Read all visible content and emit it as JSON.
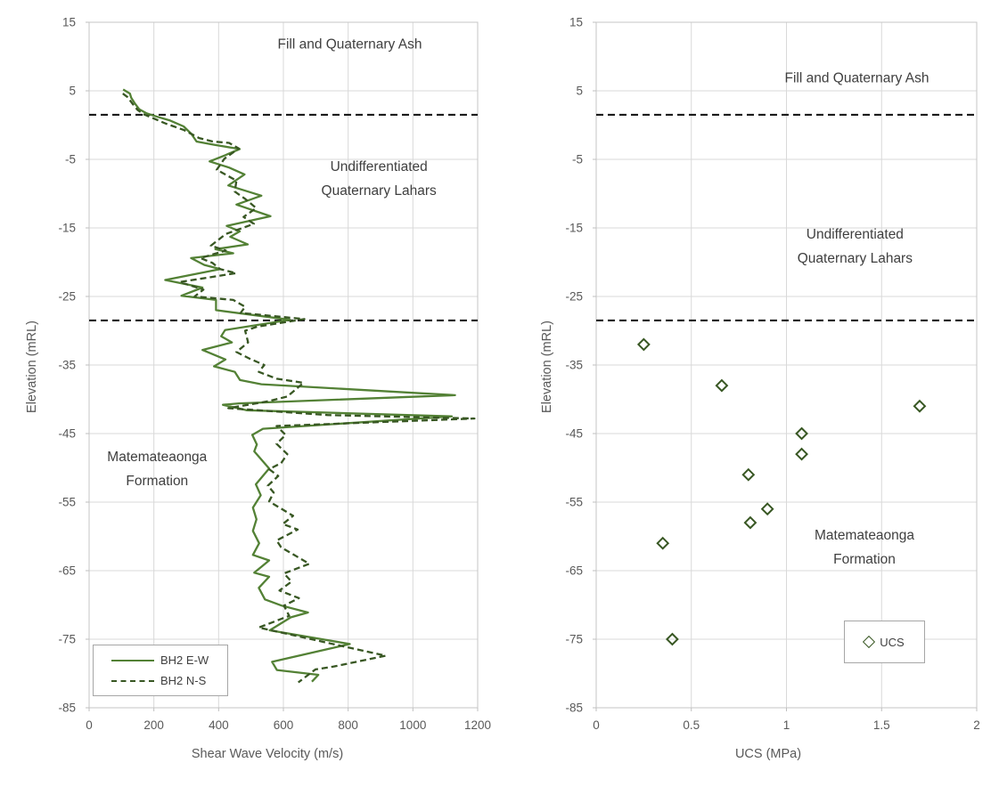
{
  "figure": {
    "background": "#ffffff",
    "colors": {
      "grid": "#d9d9d9",
      "plot_border": "#c6c6c6",
      "tick_mark": "#bfbfbf",
      "tick_text": "#595959",
      "annotation_text": "#3f3f3f",
      "boundary_line": "#1a1a1a",
      "legend_border": "#a6a6a6",
      "solid_series": "#538135",
      "dashed_series": "#385723",
      "marker": "#385723"
    }
  },
  "chart_data": [
    {
      "type": "line",
      "title": "",
      "xlabel": "Shear Wave Velocity (m/s)",
      "ylabel": "Elevation (mRL)",
      "xlim": [
        0,
        1200
      ],
      "ylim": [
        -85,
        15
      ],
      "x_ticks": [
        0,
        200,
        400,
        600,
        800,
        1000,
        1200
      ],
      "y_ticks": [
        15,
        5,
        -5,
        -15,
        -25,
        -35,
        -45,
        -55,
        -65,
        -75,
        -85
      ],
      "grid": true,
      "legend_position": "bottom-left",
      "boundaries": [
        1.5,
        -28.5
      ],
      "annotations": [
        {
          "lines": [
            "Fill and Quaternary Ash"
          ],
          "x": 805,
          "elev": 11.7
        },
        {
          "lines": [
            "Undifferentiated",
            "Quaternary Lahars"
          ],
          "x": 895,
          "elev": -7.8
        },
        {
          "lines": [
            "Matemateaonga",
            "Formation"
          ],
          "x": 210,
          "elev": -50.2
        }
      ],
      "series": [
        {
          "name": "BH2 E-W",
          "style": "solid",
          "color": "#538135",
          "points": [
            [
              105,
              5.2
            ],
            [
              126,
              4.6
            ],
            [
              130,
              4.0
            ],
            [
              142,
              3.1
            ],
            [
              155,
              2.3
            ],
            [
              178,
              1.7
            ],
            [
              212,
              1.2
            ],
            [
              248,
              0.7
            ],
            [
              292,
              -0.2
            ],
            [
              316,
              -1.3
            ],
            [
              332,
              -2.4
            ],
            [
              388,
              -2.9
            ],
            [
              465,
              -3.5
            ],
            [
              420,
              -4.4
            ],
            [
              372,
              -5.3
            ],
            [
              432,
              -6.2
            ],
            [
              480,
              -7.2
            ],
            [
              430,
              -8.8
            ],
            [
              532,
              -10.3
            ],
            [
              455,
              -11.6
            ],
            [
              560,
              -13.3
            ],
            [
              425,
              -14.7
            ],
            [
              465,
              -15.5
            ],
            [
              436,
              -16.3
            ],
            [
              490,
              -17.4
            ],
            [
              390,
              -18.1
            ],
            [
              445,
              -18.7
            ],
            [
              315,
              -19.4
            ],
            [
              356,
              -20.4
            ],
            [
              405,
              -21.0
            ],
            [
              235,
              -22.6
            ],
            [
              350,
              -23.7
            ],
            [
              285,
              -24.9
            ],
            [
              392,
              -25.5
            ],
            [
              392,
              -27.0
            ],
            [
              620,
              -28.4
            ],
            [
              420,
              -29.9
            ],
            [
              408,
              -30.8
            ],
            [
              441,
              -31.7
            ],
            [
              350,
              -32.8
            ],
            [
              421,
              -34.2
            ],
            [
              386,
              -35.2
            ],
            [
              450,
              -36.0
            ],
            [
              466,
              -37.2
            ],
            [
              532,
              -37.8
            ],
            [
              1130,
              -39.4
            ],
            [
              463,
              -40.6
            ],
            [
              413,
              -40.8
            ],
            [
              486,
              -41.6
            ],
            [
              1120,
              -42.5
            ],
            [
              537,
              -44.3
            ],
            [
              504,
              -45.2
            ],
            [
              518,
              -46.6
            ],
            [
              510,
              -47.6
            ],
            [
              556,
              -50.1
            ],
            [
              515,
              -52.4
            ],
            [
              530,
              -54.0
            ],
            [
              506,
              -55.8
            ],
            [
              517,
              -57.5
            ],
            [
              506,
              -59.2
            ],
            [
              525,
              -61.0
            ],
            [
              506,
              -62.7
            ],
            [
              556,
              -63.5
            ],
            [
              510,
              -65.3
            ],
            [
              556,
              -65.9
            ],
            [
              524,
              -67.5
            ],
            [
              543,
              -69.2
            ],
            [
              595,
              -70.1
            ],
            [
              676,
              -71.1
            ],
            [
              623,
              -71.8
            ],
            [
              558,
              -73.7
            ],
            [
              805,
              -75.7
            ],
            [
              565,
              -78.3
            ],
            [
              580,
              -79.5
            ],
            [
              708,
              -80.2
            ],
            [
              688,
              -81.2
            ]
          ]
        },
        {
          "name": "BH2 N-S",
          "style": "dashed",
          "color": "#385723",
          "points": [
            [
              104,
              4.6
            ],
            [
              118,
              4.1
            ],
            [
              136,
              3.0
            ],
            [
              150,
              2.2
            ],
            [
              168,
              1.6
            ],
            [
              198,
              1.0
            ],
            [
              238,
              0.2
            ],
            [
              292,
              -0.7
            ],
            [
              340,
              -1.9
            ],
            [
              382,
              -2.4
            ],
            [
              432,
              -2.6
            ],
            [
              462,
              -3.4
            ],
            [
              418,
              -4.9
            ],
            [
              394,
              -6.5
            ],
            [
              455,
              -8.1
            ],
            [
              450,
              -9.7
            ],
            [
              483,
              -10.8
            ],
            [
              516,
              -12.1
            ],
            [
              477,
              -13.4
            ],
            [
              509,
              -14.4
            ],
            [
              422,
              -15.9
            ],
            [
              376,
              -17.6
            ],
            [
              422,
              -18.3
            ],
            [
              344,
              -19.4
            ],
            [
              381,
              -20.1
            ],
            [
              404,
              -21.0
            ],
            [
              454,
              -21.6
            ],
            [
              280,
              -22.9
            ],
            [
              353,
              -24.0
            ],
            [
              326,
              -25.0
            ],
            [
              445,
              -25.5
            ],
            [
              482,
              -26.5
            ],
            [
              468,
              -27.4
            ],
            [
              665,
              -28.3
            ],
            [
              519,
              -29.4
            ],
            [
              482,
              -30.0
            ],
            [
              491,
              -31.7
            ],
            [
              455,
              -33.1
            ],
            [
              497,
              -34.1
            ],
            [
              541,
              -35.0
            ],
            [
              524,
              -36.0
            ],
            [
              579,
              -37.0
            ],
            [
              662,
              -37.6
            ],
            [
              612,
              -39.6
            ],
            [
              552,
              -40.3
            ],
            [
              430,
              -41.3
            ],
            [
              736,
              -42.3
            ],
            [
              1190,
              -42.8
            ],
            [
              579,
              -43.9
            ],
            [
              607,
              -45.2
            ],
            [
              579,
              -46.5
            ],
            [
              612,
              -48.0
            ],
            [
              593,
              -49.3
            ],
            [
              556,
              -50.2
            ],
            [
              584,
              -51.2
            ],
            [
              552,
              -52.6
            ],
            [
              570,
              -53.6
            ],
            [
              556,
              -54.9
            ],
            [
              588,
              -55.8
            ],
            [
              630,
              -57.0
            ],
            [
              598,
              -58.2
            ],
            [
              644,
              -59.0
            ],
            [
              579,
              -60.6
            ],
            [
              593,
              -61.6
            ],
            [
              680,
              -64.0
            ],
            [
              602,
              -65.4
            ],
            [
              625,
              -66.6
            ],
            [
              588,
              -67.9
            ],
            [
              648,
              -69.0
            ],
            [
              602,
              -70.1
            ],
            [
              618,
              -71.6
            ],
            [
              524,
              -73.3
            ],
            [
              810,
              -76.3
            ],
            [
              916,
              -77.4
            ],
            [
              754,
              -79.0
            ],
            [
              699,
              -79.4
            ],
            [
              646,
              -81.3
            ]
          ]
        }
      ]
    },
    {
      "type": "scatter",
      "title": "",
      "xlabel": "UCS (MPa)",
      "ylabel": "Elevation (mRL)",
      "xlim": [
        0,
        2
      ],
      "ylim": [
        -85,
        15
      ],
      "x_ticks": [
        0,
        0.5,
        1,
        1.5,
        2
      ],
      "y_ticks": [
        15,
        5,
        -5,
        -15,
        -25,
        -35,
        -45,
        -55,
        -65,
        -75,
        -85
      ],
      "grid": true,
      "legend_position": "bottom-right",
      "boundaries": [
        1.5,
        -28.5
      ],
      "annotations": [
        {
          "lines": [
            "Fill and Quaternary Ash"
          ],
          "x": 1.37,
          "elev": 6.8
        },
        {
          "lines": [
            "Undifferentiated",
            "Quaternary Lahars"
          ],
          "x": 1.36,
          "elev": -17.7
        },
        {
          "lines": [
            "Matemateaonga",
            "Formation"
          ],
          "x": 1.41,
          "elev": -61.6
        }
      ],
      "series": [
        {
          "name": "UCS",
          "style": "marker",
          "marker": "diamond",
          "color": "#385723",
          "points": [
            [
              0.25,
              -32
            ],
            [
              0.66,
              -38
            ],
            [
              1.7,
              -41
            ],
            [
              1.08,
              -45
            ],
            [
              1.08,
              -48
            ],
            [
              0.8,
              -51
            ],
            [
              0.9,
              -56
            ],
            [
              0.81,
              -58
            ],
            [
              0.35,
              -61
            ],
            [
              0.4,
              -75
            ]
          ]
        }
      ]
    }
  ]
}
